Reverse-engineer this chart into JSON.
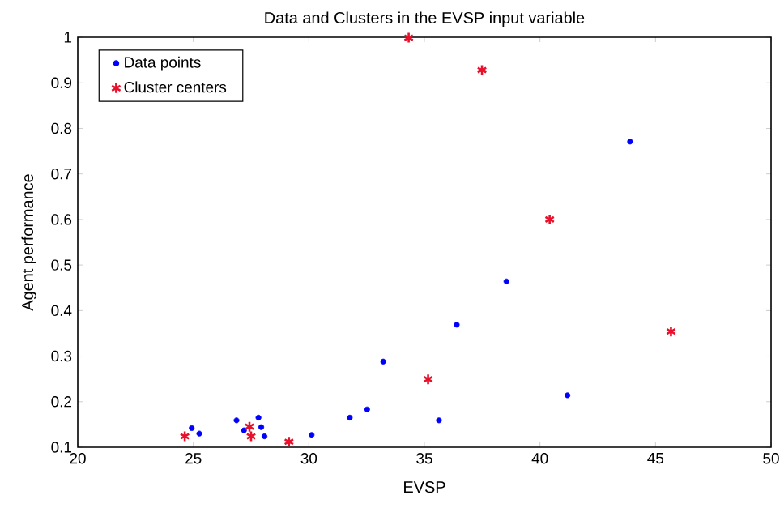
{
  "chart_data": {
    "type": "scatter",
    "title": "Data and Clusters in the EVSP input variable",
    "xlabel": "EVSP",
    "ylabel": "Agent performance",
    "xlim": [
      20,
      50
    ],
    "xticks": [
      20,
      25,
      30,
      35,
      40,
      45,
      50
    ],
    "ylim": [
      0.1,
      1
    ],
    "yticks": [
      0.1,
      0.2,
      0.3,
      0.4,
      0.5,
      0.6,
      0.7,
      0.8,
      0.9,
      1
    ],
    "grid": false,
    "legend": "top left",
    "series": [
      {
        "name": "Data points",
        "color": "#0000ff",
        "marker": "circle",
        "x": [
          24.93,
          25.26,
          26.87,
          27.82,
          27.19,
          27.94,
          28.08,
          30.12,
          31.77,
          32.52,
          33.22,
          35.63,
          36.4,
          38.55,
          41.19,
          43.9
        ],
        "values": [
          0.142,
          0.13,
          0.159,
          0.165,
          0.137,
          0.144,
          0.124,
          0.127,
          0.165,
          0.183,
          0.288,
          0.159,
          0.369,
          0.464,
          0.214,
          0.771
        ]
      },
      {
        "name": "Cluster centers",
        "color": "#e8102a",
        "marker": "cross",
        "x": [
          24.63,
          27.43,
          27.5,
          29.14,
          35.16,
          34.32,
          37.49,
          40.42,
          45.67
        ],
        "values": [
          0.124,
          0.145,
          0.124,
          0.112,
          0.249,
          0.999,
          0.928,
          0.6,
          0.354
        ]
      }
    ]
  }
}
